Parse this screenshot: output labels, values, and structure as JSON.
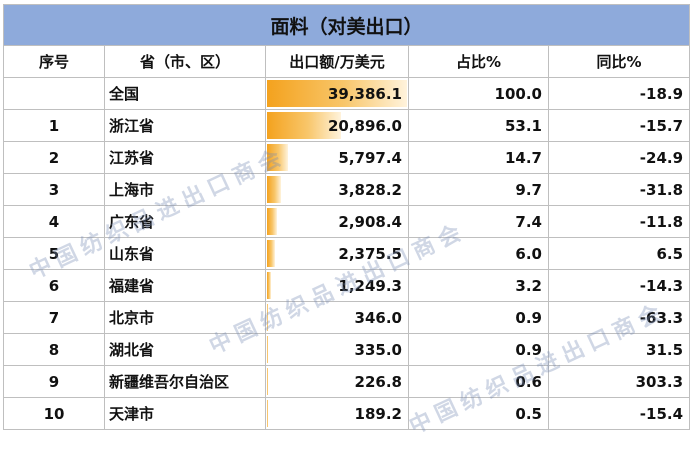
{
  "title": "面料（对美出口）",
  "headers": [
    "序号",
    "省（市、区）",
    "出口额/万美元",
    "占比%",
    "同比%"
  ],
  "rows": [
    {
      "idx": "",
      "prov": "全国",
      "value": "39,386.1",
      "share": "100.0",
      "yoy": "-18.9"
    },
    {
      "idx": "1",
      "prov": "浙江省",
      "value": "20,896.0",
      "share": "53.1",
      "yoy": "-15.7"
    },
    {
      "idx": "2",
      "prov": "江苏省",
      "value": "5,797.4",
      "share": "14.7",
      "yoy": "-24.9"
    },
    {
      "idx": "3",
      "prov": "上海市",
      "value": "3,828.2",
      "share": "9.7",
      "yoy": "-31.8"
    },
    {
      "idx": "4",
      "prov": "广东省",
      "value": "2,908.4",
      "share": "7.4",
      "yoy": "-11.8"
    },
    {
      "idx": "5",
      "prov": "山东省",
      "value": "2,375.5",
      "share": "6.0",
      "yoy": "6.5"
    },
    {
      "idx": "6",
      "prov": "福建省",
      "value": "1,249.3",
      "share": "3.2",
      "yoy": "-14.3"
    },
    {
      "idx": "7",
      "prov": "北京市",
      "value": "346.0",
      "share": "0.9",
      "yoy": "-63.3"
    },
    {
      "idx": "8",
      "prov": "湖北省",
      "value": "335.0",
      "share": "0.9",
      "yoy": "31.5"
    },
    {
      "idx": "9",
      "prov": "新疆维吾尔自治区",
      "value": "226.8",
      "share": "0.6",
      "yoy": "303.3"
    },
    {
      "idx": "10",
      "prov": "天津市",
      "value": "189.2",
      "share": "0.5",
      "yoy": "-15.4"
    }
  ],
  "watermark": "中国纺织品进出口商会",
  "colors": {
    "title_bg": "#8eaadb",
    "bar": "#f4a21e",
    "grid": "#bfbfbf"
  }
}
